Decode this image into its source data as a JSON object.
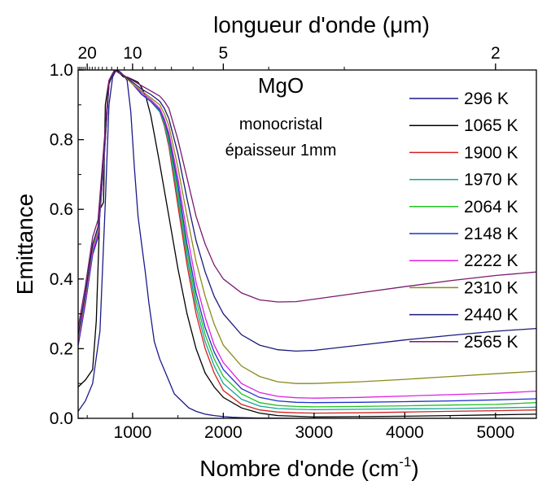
{
  "chart_data": {
    "type": "line",
    "xlabel": "Nombre d'onde (cm",
    "xlabel_sup": "-1",
    "xlabel_close": ")",
    "ylabel": "Emittance",
    "top_axis_label": "longueur d'onde (μm)",
    "xlim": [
      400,
      5450
    ],
    "ylim": [
      0,
      1.0
    ],
    "x_ticks": [
      1000,
      2000,
      3000,
      4000,
      5000
    ],
    "y_ticks": [
      0.0,
      0.2,
      0.4,
      0.6,
      0.8,
      1.0
    ],
    "x_tick_labels": [
      "1000",
      "2000",
      "3000",
      "4000",
      "5000"
    ],
    "y_tick_labels": [
      "0.0",
      "0.2",
      "0.4",
      "0.6",
      "0.8",
      "1.0"
    ],
    "top_ticks": [
      {
        "label": "20",
        "wavenumber": 500
      },
      {
        "label": "10",
        "wavenumber": 1000
      },
      {
        "label": "5",
        "wavenumber": 2000
      },
      {
        "label": "2",
        "wavenumber": 5000
      }
    ],
    "annotations": {
      "material": "MgO",
      "line1": "monocristal",
      "line2": "épaisseur 1mm"
    },
    "grid": false,
    "legend_position": "right",
    "series": [
      {
        "name": "296 K",
        "color": "#1a1a8c",
        "x": [
          400,
          480,
          560,
          640,
          700,
          740,
          780,
          820,
          860,
          900,
          940,
          980,
          1020,
          1060,
          1100,
          1140,
          1180,
          1240,
          1300,
          1380,
          1460,
          1540,
          1620,
          1700,
          1800,
          1900,
          2000,
          2100,
          2200,
          2400,
          3000,
          4000,
          5450
        ],
        "y": [
          0.02,
          0.05,
          0.1,
          0.25,
          0.62,
          0.9,
          0.98,
          1.0,
          0.995,
          0.985,
          0.97,
          0.88,
          0.72,
          0.58,
          0.5,
          0.42,
          0.33,
          0.22,
          0.17,
          0.12,
          0.07,
          0.05,
          0.03,
          0.02,
          0.012,
          0.008,
          0.005,
          0.003,
          0.002,
          0.001,
          0.0,
          0.0,
          0.0
        ]
      },
      {
        "name": "1065 K",
        "color": "#000000",
        "x": [
          400,
          480,
          560,
          600,
          640,
          680,
          700,
          740,
          780,
          820,
          860,
          900,
          940,
          980,
          1020,
          1060,
          1100,
          1150,
          1200,
          1250,
          1300,
          1400,
          1500,
          1600,
          1700,
          1800,
          1900,
          2000,
          2200,
          2400,
          2600,
          3000,
          3500,
          4000,
          4500,
          5000,
          5450
        ],
        "y": [
          0.09,
          0.11,
          0.14,
          0.28,
          0.6,
          0.62,
          0.9,
          0.97,
          0.99,
          1.0,
          0.99,
          0.98,
          0.98,
          0.975,
          0.97,
          0.965,
          0.95,
          0.92,
          0.87,
          0.8,
          0.73,
          0.58,
          0.43,
          0.3,
          0.2,
          0.13,
          0.09,
          0.06,
          0.03,
          0.015,
          0.008,
          0.004,
          0.005,
          0.006,
          0.008,
          0.01,
          0.012
        ]
      },
      {
        "name": "1900 K",
        "color": "#d42020",
        "x": [
          400,
          480,
          560,
          620,
          680,
          740,
          800,
          860,
          900,
          1000,
          1100,
          1200,
          1300,
          1350,
          1400,
          1500,
          1600,
          1700,
          1800,
          1900,
          2000,
          2200,
          2400,
          2600,
          2800,
          3000,
          3500,
          4000,
          4500,
          5000,
          5450
        ],
        "y": [
          0.21,
          0.33,
          0.47,
          0.52,
          0.72,
          0.96,
          1.0,
          0.99,
          0.985,
          0.96,
          0.93,
          0.91,
          0.88,
          0.84,
          0.78,
          0.61,
          0.44,
          0.3,
          0.2,
          0.13,
          0.08,
          0.04,
          0.024,
          0.018,
          0.016,
          0.015,
          0.016,
          0.018,
          0.02,
          0.022,
          0.024
        ]
      },
      {
        "name": "1970 K",
        "color": "#16a39a",
        "x": [
          400,
          480,
          560,
          620,
          680,
          740,
          800,
          860,
          900,
          1000,
          1100,
          1200,
          1300,
          1350,
          1400,
          1500,
          1600,
          1700,
          1800,
          1900,
          2000,
          2200,
          2400,
          2600,
          2800,
          3000,
          3500,
          4000,
          4500,
          5000,
          5450
        ],
        "y": [
          0.21,
          0.33,
          0.47,
          0.52,
          0.72,
          0.96,
          1.0,
          0.99,
          0.985,
          0.96,
          0.93,
          0.91,
          0.88,
          0.845,
          0.79,
          0.63,
          0.46,
          0.32,
          0.22,
          0.15,
          0.1,
          0.055,
          0.035,
          0.028,
          0.026,
          0.025,
          0.026,
          0.027,
          0.028,
          0.03,
          0.032
        ]
      },
      {
        "name": "2064 K",
        "color": "#22c222",
        "x": [
          400,
          480,
          560,
          620,
          680,
          740,
          800,
          860,
          900,
          1000,
          1100,
          1200,
          1300,
          1350,
          1400,
          1500,
          1600,
          1700,
          1800,
          1900,
          2000,
          2200,
          2400,
          2600,
          2800,
          3000,
          3500,
          4000,
          4500,
          5000,
          5450
        ],
        "y": [
          0.21,
          0.33,
          0.47,
          0.52,
          0.72,
          0.96,
          1.0,
          0.99,
          0.985,
          0.96,
          0.93,
          0.91,
          0.885,
          0.85,
          0.8,
          0.65,
          0.48,
          0.34,
          0.24,
          0.17,
          0.12,
          0.07,
          0.045,
          0.037,
          0.034,
          0.033,
          0.034,
          0.036,
          0.038,
          0.04,
          0.045
        ]
      },
      {
        "name": "2148 K",
        "color": "#2030d0",
        "x": [
          400,
          480,
          560,
          620,
          680,
          740,
          800,
          860,
          900,
          1000,
          1100,
          1200,
          1300,
          1350,
          1400,
          1500,
          1600,
          1700,
          1800,
          1900,
          2000,
          2200,
          2400,
          2600,
          2800,
          3000,
          3500,
          4000,
          4500,
          5000,
          5450
        ],
        "y": [
          0.21,
          0.33,
          0.47,
          0.52,
          0.72,
          0.96,
          1.0,
          0.99,
          0.985,
          0.96,
          0.93,
          0.91,
          0.885,
          0.855,
          0.81,
          0.67,
          0.5,
          0.36,
          0.26,
          0.19,
          0.14,
          0.085,
          0.06,
          0.05,
          0.046,
          0.045,
          0.046,
          0.048,
          0.05,
          0.053,
          0.056
        ]
      },
      {
        "name": "2222 K",
        "color": "#e020e0",
        "x": [
          400,
          480,
          560,
          620,
          680,
          740,
          800,
          860,
          900,
          1000,
          1100,
          1200,
          1300,
          1350,
          1400,
          1500,
          1600,
          1700,
          1800,
          1900,
          2000,
          2200,
          2400,
          2600,
          2800,
          3000,
          3500,
          4000,
          4500,
          5000,
          5450
        ],
        "y": [
          0.22,
          0.34,
          0.48,
          0.53,
          0.73,
          0.96,
          1.0,
          0.99,
          0.985,
          0.96,
          0.935,
          0.915,
          0.89,
          0.86,
          0.82,
          0.69,
          0.53,
          0.39,
          0.29,
          0.21,
          0.16,
          0.1,
          0.074,
          0.063,
          0.059,
          0.058,
          0.06,
          0.064,
          0.068,
          0.072,
          0.078
        ]
      },
      {
        "name": "2310 K",
        "color": "#8a8a1a",
        "x": [
          400,
          480,
          560,
          620,
          680,
          740,
          800,
          860,
          900,
          1000,
          1100,
          1200,
          1300,
          1350,
          1400,
          1500,
          1600,
          1700,
          1800,
          1900,
          2000,
          2200,
          2400,
          2600,
          2800,
          3000,
          3500,
          4000,
          4500,
          5000,
          5450
        ],
        "y": [
          0.23,
          0.35,
          0.49,
          0.54,
          0.74,
          0.96,
          1.0,
          0.99,
          0.985,
          0.96,
          0.94,
          0.92,
          0.9,
          0.875,
          0.84,
          0.72,
          0.58,
          0.45,
          0.35,
          0.27,
          0.21,
          0.15,
          0.12,
          0.105,
          0.1,
          0.1,
          0.105,
          0.112,
          0.12,
          0.128,
          0.135
        ]
      },
      {
        "name": "2440 K",
        "color": "#1a1a7a",
        "x": [
          400,
          480,
          560,
          620,
          680,
          740,
          800,
          860,
          900,
          1000,
          1100,
          1200,
          1300,
          1350,
          1400,
          1500,
          1600,
          1700,
          1800,
          1900,
          2000,
          2200,
          2400,
          2600,
          2800,
          3000,
          3500,
          4000,
          4500,
          5000,
          5450
        ],
        "y": [
          0.24,
          0.36,
          0.5,
          0.55,
          0.75,
          0.96,
          1.0,
          0.99,
          0.985,
          0.965,
          0.945,
          0.93,
          0.91,
          0.89,
          0.86,
          0.76,
          0.63,
          0.51,
          0.42,
          0.35,
          0.3,
          0.24,
          0.21,
          0.197,
          0.193,
          0.195,
          0.21,
          0.225,
          0.238,
          0.25,
          0.258
        ]
      },
      {
        "name": "2565 K",
        "color": "#7a1a6e",
        "x": [
          400,
          480,
          560,
          620,
          680,
          740,
          800,
          860,
          900,
          1000,
          1100,
          1200,
          1300,
          1350,
          1400,
          1500,
          1600,
          1700,
          1800,
          1900,
          2000,
          2200,
          2400,
          2600,
          2800,
          3000,
          3500,
          4000,
          4500,
          5000,
          5450
        ],
        "y": [
          0.26,
          0.38,
          0.52,
          0.57,
          0.77,
          0.97,
          1.0,
          0.99,
          0.985,
          0.97,
          0.955,
          0.94,
          0.925,
          0.91,
          0.89,
          0.8,
          0.69,
          0.58,
          0.5,
          0.44,
          0.4,
          0.36,
          0.34,
          0.334,
          0.335,
          0.342,
          0.36,
          0.378,
          0.395,
          0.41,
          0.42
        ]
      }
    ]
  }
}
